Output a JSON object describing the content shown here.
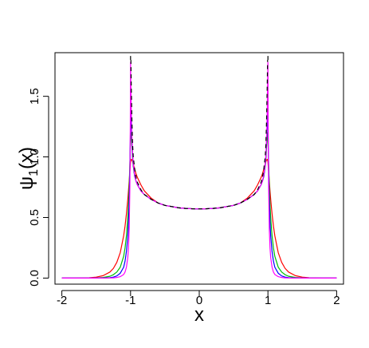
{
  "chart_data": {
    "type": "line",
    "title": "",
    "xlabel": "x",
    "ylabel": "ψ",
    "ylabel_subscript": "1",
    "ylabel_suffix": "(x)",
    "xlim": [
      -2.1,
      2.1
    ],
    "ylim": [
      -0.05,
      1.86
    ],
    "x_ticks": [
      -2,
      -1,
      0,
      1,
      2
    ],
    "x_tick_labels": [
      "-2",
      "-1",
      "0",
      "1",
      "2"
    ],
    "y_ticks": [
      0.0,
      0.5,
      1.0,
      1.5
    ],
    "y_tick_labels": [
      "0.0",
      "0.5",
      "1.0",
      "1.5"
    ],
    "grid": false,
    "legend": "none",
    "x": [
      -2.0,
      -1.8,
      -1.6,
      -1.5,
      -1.4,
      -1.3,
      -1.25,
      -1.2,
      -1.15,
      -1.1,
      -1.08,
      -1.06,
      -1.04,
      -1.03,
      -1.02,
      -1.01,
      -1.005,
      -1.0,
      -0.995,
      -0.99,
      -0.98,
      -0.97,
      -0.96,
      -0.94,
      -0.92,
      -0.9,
      -0.85,
      -0.8,
      -0.7,
      -0.6,
      -0.5,
      -0.4,
      -0.3,
      -0.2,
      -0.1,
      0.0,
      0.1,
      0.2,
      0.3,
      0.4,
      0.5,
      0.6,
      0.7,
      0.8,
      0.85,
      0.9,
      0.92,
      0.94,
      0.96,
      0.97,
      0.98,
      0.99,
      0.995,
      1.0,
      1.005,
      1.01,
      1.02,
      1.03,
      1.04,
      1.06,
      1.08,
      1.1,
      1.15,
      1.2,
      1.25,
      1.3,
      1.4,
      1.5,
      1.6,
      1.8,
      2.0
    ],
    "series": [
      {
        "color": "#ff0000",
        "values": [
          0.0,
          0.0,
          0.003,
          0.008,
          0.02,
          0.05,
          0.08,
          0.13,
          0.21,
          0.35,
          0.43,
          0.53,
          0.65,
          0.72,
          0.8,
          0.88,
          0.92,
          0.96,
          0.975,
          0.98,
          0.975,
          0.96,
          0.94,
          0.9,
          0.86,
          0.83,
          0.77,
          0.72,
          0.66,
          0.62,
          0.6,
          0.59,
          0.58,
          0.575,
          0.572,
          0.571,
          0.572,
          0.575,
          0.58,
          0.59,
          0.6,
          0.62,
          0.66,
          0.72,
          0.77,
          0.83,
          0.86,
          0.9,
          0.94,
          0.96,
          0.975,
          0.98,
          0.975,
          0.96,
          0.92,
          0.88,
          0.8,
          0.72,
          0.65,
          0.53,
          0.43,
          0.35,
          0.21,
          0.13,
          0.08,
          0.05,
          0.02,
          0.008,
          0.003,
          0.0,
          0.0
        ]
      },
      {
        "color": "#00c000",
        "values": [
          0.0,
          0.0,
          0.0,
          0.002,
          0.005,
          0.015,
          0.028,
          0.05,
          0.09,
          0.18,
          0.25,
          0.35,
          0.5,
          0.6,
          0.75,
          0.95,
          1.05,
          1.15,
          1.2,
          1.18,
          1.08,
          0.98,
          0.92,
          0.84,
          0.8,
          0.77,
          0.72,
          0.69,
          0.65,
          0.62,
          0.6,
          0.59,
          0.58,
          0.575,
          0.572,
          0.571,
          0.572,
          0.575,
          0.58,
          0.59,
          0.6,
          0.62,
          0.65,
          0.69,
          0.72,
          0.77,
          0.8,
          0.84,
          0.92,
          0.98,
          1.08,
          1.18,
          1.2,
          1.15,
          1.05,
          0.95,
          0.75,
          0.6,
          0.5,
          0.35,
          0.25,
          0.18,
          0.09,
          0.05,
          0.028,
          0.015,
          0.005,
          0.002,
          0.0,
          0.0,
          0.0
        ]
      },
      {
        "color": "#0000ff",
        "values": [
          0.0,
          0.0,
          0.0,
          0.0,
          0.001,
          0.004,
          0.008,
          0.018,
          0.04,
          0.09,
          0.14,
          0.22,
          0.35,
          0.46,
          0.62,
          0.9,
          1.1,
          1.32,
          1.38,
          1.3,
          1.12,
          1.0,
          0.93,
          0.84,
          0.8,
          0.77,
          0.72,
          0.69,
          0.65,
          0.62,
          0.6,
          0.59,
          0.58,
          0.575,
          0.572,
          0.571,
          0.572,
          0.575,
          0.58,
          0.59,
          0.6,
          0.62,
          0.65,
          0.69,
          0.72,
          0.77,
          0.8,
          0.84,
          0.93,
          1.0,
          1.12,
          1.3,
          1.38,
          1.32,
          1.1,
          0.9,
          0.62,
          0.46,
          0.35,
          0.22,
          0.14,
          0.09,
          0.04,
          0.018,
          0.008,
          0.004,
          0.001,
          0.0,
          0.0,
          0.0,
          0.0
        ]
      },
      {
        "color": "#ff00ff",
        "values": [
          0.0,
          0.0,
          0.0,
          0.0,
          0.0,
          0.001,
          0.002,
          0.005,
          0.012,
          0.03,
          0.05,
          0.09,
          0.17,
          0.25,
          0.4,
          0.75,
          1.1,
          1.78,
          1.6,
          1.4,
          1.15,
          1.02,
          0.94,
          0.85,
          0.8,
          0.77,
          0.72,
          0.69,
          0.65,
          0.62,
          0.6,
          0.59,
          0.58,
          0.575,
          0.572,
          0.571,
          0.572,
          0.575,
          0.58,
          0.59,
          0.6,
          0.62,
          0.65,
          0.69,
          0.72,
          0.77,
          0.8,
          0.85,
          0.94,
          1.02,
          1.15,
          1.4,
          1.6,
          1.78,
          1.1,
          0.75,
          0.4,
          0.25,
          0.17,
          0.09,
          0.05,
          0.03,
          0.012,
          0.005,
          0.002,
          0.001,
          0.0,
          0.0,
          0.0,
          0.0,
          0.0
        ]
      }
    ],
    "limit_curve": {
      "color": "#000000",
      "style": "dashed",
      "x": [
        -0.995,
        -0.99,
        -0.98,
        -0.97,
        -0.96,
        -0.94,
        -0.92,
        -0.9,
        -0.85,
        -0.8,
        -0.7,
        -0.6,
        -0.5,
        -0.4,
        -0.3,
        -0.2,
        -0.1,
        0.0,
        0.1,
        0.2,
        0.3,
        0.4,
        0.5,
        0.6,
        0.7,
        0.8,
        0.85,
        0.9,
        0.92,
        0.94,
        0.96,
        0.97,
        0.98,
        0.99,
        0.995
      ],
      "values": [
        1.8,
        1.6,
        1.3,
        1.1,
        1.0,
        0.9,
        0.83,
        0.79,
        0.73,
        0.69,
        0.65,
        0.62,
        0.6,
        0.59,
        0.58,
        0.575,
        0.572,
        0.571,
        0.572,
        0.575,
        0.58,
        0.59,
        0.6,
        0.62,
        0.65,
        0.69,
        0.73,
        0.79,
        0.83,
        0.9,
        1.0,
        1.1,
        1.3,
        1.6,
        1.8
      ]
    }
  }
}
